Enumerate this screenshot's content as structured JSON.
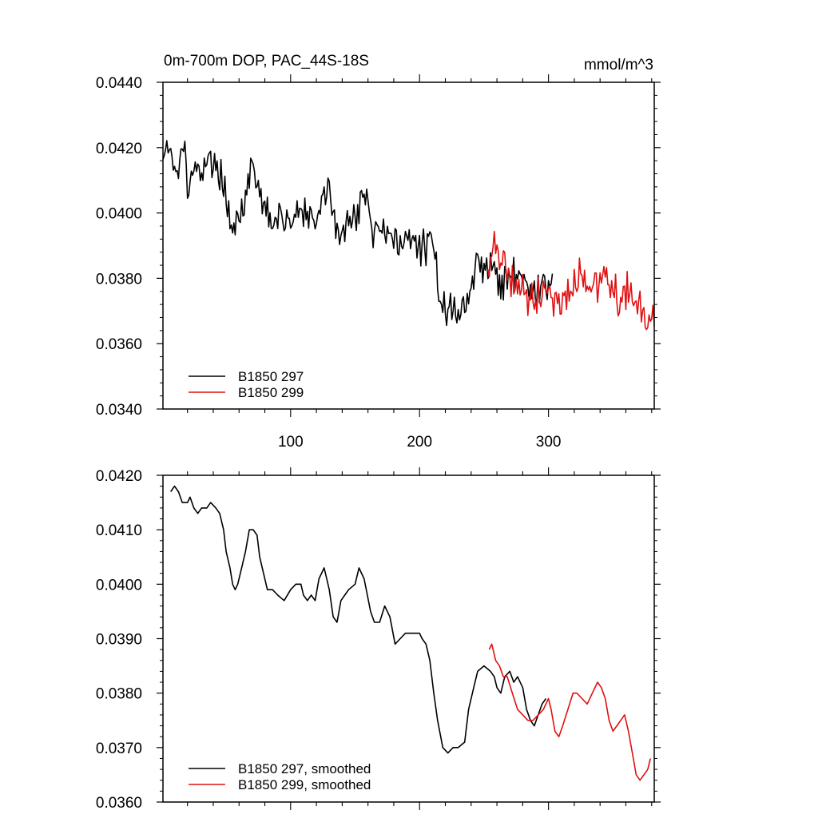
{
  "colors": {
    "run297": "#000000",
    "run299": "#e01010",
    "frame": "#000000",
    "background": "#ffffff"
  },
  "chart_data": [
    {
      "type": "line",
      "title": "0m-700m DOP, PAC_44S-18S",
      "units": "mmol/m^3",
      "xlim": [
        1,
        382
      ],
      "ylim": [
        0.034,
        0.044
      ],
      "x_ticks": [
        100,
        200,
        300
      ],
      "x_tick_labels": [
        "100",
        "200",
        "300"
      ],
      "y_ticks": [
        0.034,
        0.036,
        0.038,
        0.04,
        0.042,
        0.044
      ],
      "y_tick_labels": [
        "0.0340",
        "0.0360",
        "0.0380",
        "0.0400",
        "0.0420",
        "0.0440"
      ],
      "legend": {
        "position": "bottom-left",
        "entries": [
          "B1850 297",
          "B1850 299"
        ]
      },
      "series": [
        {
          "name": "B1850 297",
          "color": "#000000",
          "noise": 0.0005,
          "seed": 17,
          "points": [
            [
              1,
              0.0417
            ],
            [
              4,
              0.0422
            ],
            [
              8,
              0.0419
            ],
            [
              10,
              0.0414
            ],
            [
              12,
              0.0411
            ],
            [
              15,
              0.0424
            ],
            [
              18,
              0.0418
            ],
            [
              20,
              0.0409
            ],
            [
              24,
              0.0412
            ],
            [
              30,
              0.0414
            ],
            [
              35,
              0.0416
            ],
            [
              40,
              0.0414
            ],
            [
              45,
              0.0414
            ],
            [
              50,
              0.0403
            ],
            [
              55,
              0.0397
            ],
            [
              60,
              0.04
            ],
            [
              65,
              0.0404
            ],
            [
              70,
              0.0413
            ],
            [
              75,
              0.0407
            ],
            [
              80,
              0.0401
            ],
            [
              85,
              0.0399
            ],
            [
              90,
              0.0398
            ],
            [
              95,
              0.0398
            ],
            [
              100,
              0.0397
            ],
            [
              105,
              0.04
            ],
            [
              110,
              0.04
            ],
            [
              115,
              0.0397
            ],
            [
              120,
              0.0396
            ],
            [
              125,
              0.0406
            ],
            [
              130,
              0.0408
            ],
            [
              135,
              0.0395
            ],
            [
              140,
              0.0392
            ],
            [
              145,
              0.0398
            ],
            [
              150,
              0.0399
            ],
            [
              155,
              0.0406
            ],
            [
              160,
              0.0402
            ],
            [
              165,
              0.0393
            ],
            [
              170,
              0.0397
            ],
            [
              175,
              0.0395
            ],
            [
              180,
              0.0393
            ],
            [
              185,
              0.0389
            ],
            [
              190,
              0.0391
            ],
            [
              195,
              0.0392
            ],
            [
              200,
              0.0389
            ],
            [
              205,
              0.039
            ],
            [
              210,
              0.039
            ],
            [
              215,
              0.0378
            ],
            [
              220,
              0.0371
            ],
            [
              225,
              0.0369
            ],
            [
              230,
              0.0371
            ],
            [
              235,
              0.0371
            ],
            [
              240,
              0.0377
            ],
            [
              245,
              0.0385
            ],
            [
              250,
              0.0384
            ],
            [
              255,
              0.0384
            ],
            [
              260,
              0.0381
            ],
            [
              265,
              0.0377
            ],
            [
              270,
              0.0381
            ],
            [
              275,
              0.0382
            ],
            [
              280,
              0.0381
            ],
            [
              285,
              0.0378
            ],
            [
              290,
              0.0375
            ],
            [
              295,
              0.0377
            ],
            [
              300,
              0.0378
            ],
            [
              303,
              0.0379
            ]
          ]
        },
        {
          "name": "B1850 299",
          "color": "#e01010",
          "noise": 0.0006,
          "seed": 91,
          "points": [
            [
              253,
              0.0386
            ],
            [
              258,
              0.0389
            ],
            [
              262,
              0.0386
            ],
            [
              268,
              0.0383
            ],
            [
              272,
              0.038
            ],
            [
              276,
              0.0379
            ],
            [
              280,
              0.0377
            ],
            [
              285,
              0.0375
            ],
            [
              290,
              0.0374
            ],
            [
              295,
              0.0375
            ],
            [
              300,
              0.0378
            ],
            [
              305,
              0.0374
            ],
            [
              310,
              0.0372
            ],
            [
              315,
              0.0375
            ],
            [
              320,
              0.0379
            ],
            [
              325,
              0.0381
            ],
            [
              330,
              0.0379
            ],
            [
              335,
              0.0378
            ],
            [
              340,
              0.0381
            ],
            [
              345,
              0.0382
            ],
            [
              350,
              0.0378
            ],
            [
              355,
              0.0372
            ],
            [
              360,
              0.0373
            ],
            [
              365,
              0.0376
            ],
            [
              368,
              0.0375
            ],
            [
              372,
              0.0369
            ],
            [
              376,
              0.0364
            ],
            [
              379,
              0.0365
            ],
            [
              382,
              0.0369
            ]
          ]
        }
      ]
    },
    {
      "type": "line",
      "title": "",
      "xlim": [
        1,
        382
      ],
      "ylim": [
        0.036,
        0.042
      ],
      "x_ticks": [
        100,
        200,
        300
      ],
      "y_ticks": [
        0.036,
        0.037,
        0.038,
        0.039,
        0.04,
        0.041,
        0.042
      ],
      "y_tick_labels": [
        "0.0360",
        "0.0370",
        "0.0380",
        "0.0390",
        "0.0400",
        "0.0410",
        "0.0420"
      ],
      "legend": {
        "position": "bottom-left",
        "entries": [
          "B1850 297, smoothed",
          "B1850 299, smoothed"
        ]
      },
      "series": [
        {
          "name": "B1850 297, smoothed",
          "color": "#000000",
          "points": [
            [
              7,
              0.0417
            ],
            [
              10,
              0.0418
            ],
            [
              13,
              0.0417
            ],
            [
              16,
              0.0415
            ],
            [
              20,
              0.0415
            ],
            [
              22,
              0.0416
            ],
            [
              25,
              0.0414
            ],
            [
              28,
              0.0413
            ],
            [
              31,
              0.0414
            ],
            [
              35,
              0.0414
            ],
            [
              38,
              0.0415
            ],
            [
              42,
              0.0414
            ],
            [
              45,
              0.0413
            ],
            [
              48,
              0.041
            ],
            [
              50,
              0.0406
            ],
            [
              53,
              0.0403
            ],
            [
              55,
              0.04
            ],
            [
              57,
              0.0399
            ],
            [
              59,
              0.04
            ],
            [
              62,
              0.0403
            ],
            [
              65,
              0.0406
            ],
            [
              68,
              0.041
            ],
            [
              71,
              0.041
            ],
            [
              74,
              0.0409
            ],
            [
              76,
              0.0405
            ],
            [
              79,
              0.0402
            ],
            [
              82,
              0.0399
            ],
            [
              86,
              0.0399
            ],
            [
              90,
              0.0398
            ],
            [
              95,
              0.0397
            ],
            [
              100,
              0.0399
            ],
            [
              104,
              0.04
            ],
            [
              108,
              0.04
            ],
            [
              110,
              0.0398
            ],
            [
              113,
              0.0397
            ],
            [
              116,
              0.0398
            ],
            [
              119,
              0.0397
            ],
            [
              122,
              0.0401
            ],
            [
              126,
              0.0403
            ],
            [
              130,
              0.0399
            ],
            [
              133,
              0.0394
            ],
            [
              136,
              0.0393
            ],
            [
              139,
              0.0397
            ],
            [
              142,
              0.0398
            ],
            [
              145,
              0.0399
            ],
            [
              150,
              0.04
            ],
            [
              153,
              0.0403
            ],
            [
              157,
              0.0401
            ],
            [
              162,
              0.0395
            ],
            [
              165,
              0.0393
            ],
            [
              169,
              0.0393
            ],
            [
              173,
              0.0396
            ],
            [
              177,
              0.0394
            ],
            [
              181,
              0.0389
            ],
            [
              185,
              0.039
            ],
            [
              189,
              0.0391
            ],
            [
              193,
              0.0391
            ],
            [
              197,
              0.0391
            ],
            [
              200,
              0.0391
            ],
            [
              202,
              0.039
            ],
            [
              205,
              0.0389
            ],
            [
              208,
              0.0386
            ],
            [
              211,
              0.038
            ],
            [
              214,
              0.0375
            ],
            [
              218,
              0.037
            ],
            [
              222,
              0.0369
            ],
            [
              226,
              0.037
            ],
            [
              230,
              0.037
            ],
            [
              235,
              0.0371
            ],
            [
              238,
              0.0377
            ],
            [
              242,
              0.0381
            ],
            [
              245,
              0.0384
            ],
            [
              250,
              0.0385
            ],
            [
              255,
              0.0384
            ],
            [
              258,
              0.0383
            ],
            [
              260,
              0.0381
            ],
            [
              263,
              0.038
            ],
            [
              266,
              0.0383
            ],
            [
              270,
              0.0384
            ],
            [
              273,
              0.0382
            ],
            [
              276,
              0.0383
            ],
            [
              280,
              0.0381
            ],
            [
              283,
              0.0377
            ],
            [
              286,
              0.0375
            ],
            [
              289,
              0.0374
            ],
            [
              292,
              0.0376
            ],
            [
              295,
              0.0378
            ],
            [
              298,
              0.0379
            ]
          ]
        },
        {
          "name": "B1850 299, smoothed",
          "color": "#e01010",
          "points": [
            [
              254,
              0.0388
            ],
            [
              256,
              0.0389
            ],
            [
              259,
              0.0386
            ],
            [
              262,
              0.0385
            ],
            [
              265,
              0.0383
            ],
            [
              268,
              0.0383
            ],
            [
              272,
              0.038
            ],
            [
              276,
              0.0377
            ],
            [
              280,
              0.0376
            ],
            [
              284,
              0.0375
            ],
            [
              288,
              0.0375
            ],
            [
              292,
              0.0376
            ],
            [
              296,
              0.0377
            ],
            [
              300,
              0.0379
            ],
            [
              302,
              0.0377
            ],
            [
              305,
              0.0373
            ],
            [
              308,
              0.0372
            ],
            [
              311,
              0.0374
            ],
            [
              315,
              0.0377
            ],
            [
              319,
              0.038
            ],
            [
              322,
              0.038
            ],
            [
              326,
              0.0379
            ],
            [
              330,
              0.0378
            ],
            [
              334,
              0.038
            ],
            [
              338,
              0.0382
            ],
            [
              341,
              0.0381
            ],
            [
              344,
              0.0379
            ],
            [
              347,
              0.0375
            ],
            [
              350,
              0.0373
            ],
            [
              353,
              0.0374
            ],
            [
              356,
              0.0375
            ],
            [
              359,
              0.0376
            ],
            [
              362,
              0.0373
            ],
            [
              365,
              0.0369
            ],
            [
              368,
              0.0365
            ],
            [
              371,
              0.0364
            ],
            [
              374,
              0.0365
            ],
            [
              377,
              0.0366
            ],
            [
              379,
              0.0368
            ]
          ]
        }
      ]
    }
  ]
}
